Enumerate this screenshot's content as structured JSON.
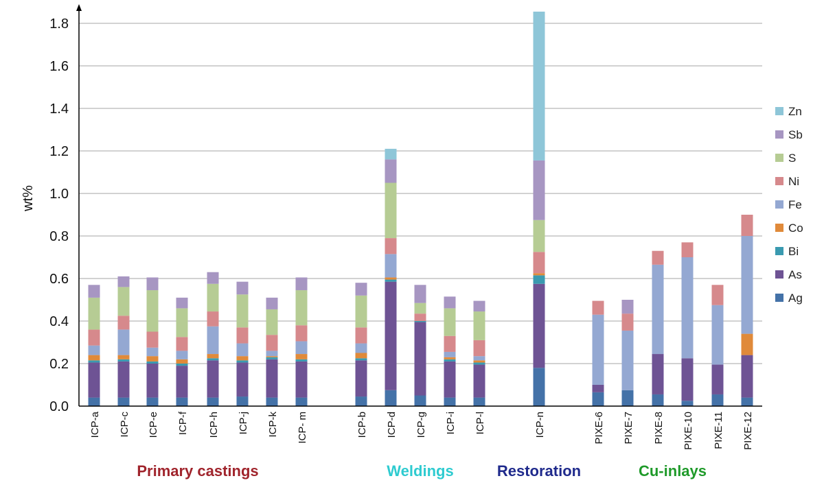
{
  "chart_data": {
    "type": "bar",
    "stacked": true,
    "ylabel": "wt%",
    "ylim": [
      0,
      1.85
    ],
    "yticks": [
      "0.0",
      "0.2",
      "0.4",
      "0.6",
      "0.8",
      "1.0",
      "1.2",
      "1.4",
      "1.6",
      "1.8"
    ],
    "ytick_values": [
      0,
      0.2,
      0.4,
      0.6,
      0.8,
      1.0,
      1.2,
      1.4,
      1.6,
      1.8
    ],
    "grid": true,
    "legend_position": "right",
    "categories": [
      "ICP-a",
      "ICP-c",
      "ICP-e",
      "ICP-f",
      "ICP-h",
      "ICP-j",
      "ICP-k",
      "ICP- m",
      "ICP-b",
      "ICP-d",
      "ICP-g",
      "ICP-i",
      "ICP-l",
      "ICP-n",
      "PIXE-6",
      "PIXE-7",
      "PIXE-8",
      "PIXE-10",
      "PIXE-11",
      "PIXE-12"
    ],
    "groups": [
      {
        "label": "Primary castings",
        "color": "#a0242c",
        "members": [
          0,
          1,
          2,
          3,
          4,
          5,
          6,
          7
        ]
      },
      {
        "label": "Weldings",
        "color": "#2ecbd0",
        "members": [
          8,
          9,
          10,
          11,
          12
        ]
      },
      {
        "label": "Restoration",
        "color": "#1f2a8c",
        "members": [
          13
        ]
      },
      {
        "label": "Cu-inlays",
        "color": "#1f9a2a",
        "members": [
          14,
          15,
          16,
          17,
          18,
          19
        ]
      }
    ],
    "series": [
      {
        "name": "Ag",
        "color": "#4472a8",
        "values": [
          0.04,
          0.04,
          0.04,
          0.04,
          0.04,
          0.045,
          0.04,
          0.04,
          0.045,
          0.075,
          0.05,
          0.04,
          0.04,
          0.18,
          0.065,
          0.075,
          0.055,
          0.025,
          0.055,
          0.04
        ]
      },
      {
        "name": "As",
        "color": "#6e5394",
        "values": [
          0.165,
          0.17,
          0.16,
          0.15,
          0.175,
          0.16,
          0.18,
          0.17,
          0.17,
          0.51,
          0.345,
          0.17,
          0.155,
          0.395,
          0.035,
          0.0,
          0.19,
          0.2,
          0.14,
          0.2
        ]
      },
      {
        "name": "Bi",
        "color": "#3a9ab0",
        "values": [
          0.01,
          0.01,
          0.01,
          0.01,
          0.01,
          0.01,
          0.01,
          0.01,
          0.01,
          0.01,
          0.005,
          0.01,
          0.01,
          0.04,
          0.0,
          0.0,
          0.0,
          0.0,
          0.0,
          0.0
        ]
      },
      {
        "name": "Co",
        "color": "#e08a3a",
        "values": [
          0.025,
          0.02,
          0.025,
          0.02,
          0.02,
          0.02,
          0.005,
          0.025,
          0.025,
          0.01,
          0.0,
          0.01,
          0.01,
          0.01,
          0.0,
          0.0,
          0.0,
          0.0,
          0.0,
          0.1
        ]
      },
      {
        "name": "Fe",
        "color": "#94a8d2",
        "values": [
          0.045,
          0.12,
          0.04,
          0.04,
          0.13,
          0.06,
          0.025,
          0.06,
          0.045,
          0.11,
          0.0,
          0.025,
          0.02,
          0.0,
          0.33,
          0.28,
          0.42,
          0.475,
          0.28,
          0.46
        ]
      },
      {
        "name": "Ni",
        "color": "#d6898c",
        "values": [
          0.075,
          0.065,
          0.075,
          0.065,
          0.07,
          0.075,
          0.075,
          0.075,
          0.075,
          0.075,
          0.035,
          0.075,
          0.075,
          0.1,
          0.065,
          0.08,
          0.065,
          0.07,
          0.095,
          0.1
        ]
      },
      {
        "name": "S",
        "color": "#b6cc94",
        "values": [
          0.15,
          0.135,
          0.195,
          0.135,
          0.13,
          0.155,
          0.12,
          0.165,
          0.15,
          0.26,
          0.05,
          0.13,
          0.135,
          0.15,
          0.0,
          0.0,
          0.0,
          0.0,
          0.0,
          0.0
        ]
      },
      {
        "name": "Sb",
        "color": "#a796c2",
        "values": [
          0.06,
          0.05,
          0.06,
          0.05,
          0.055,
          0.06,
          0.055,
          0.06,
          0.06,
          0.11,
          0.085,
          0.055,
          0.05,
          0.28,
          0.0,
          0.065,
          0.0,
          0.0,
          0.0,
          0.0
        ]
      },
      {
        "name": "Zn",
        "color": "#8ec6d8",
        "values": [
          0.0,
          0.0,
          0.0,
          0.0,
          0.0,
          0.0,
          0.0,
          0.0,
          0.0,
          0.05,
          0.0,
          0.0,
          0.0,
          0.7,
          0.0,
          0.0,
          0.0,
          0.0,
          0.0,
          0.0
        ]
      }
    ]
  }
}
